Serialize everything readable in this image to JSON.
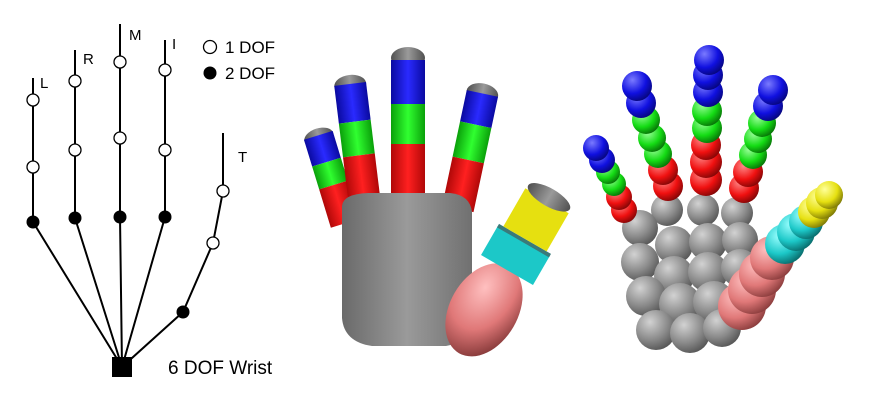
{
  "skeleton": {
    "finger_labels": {
      "little": "L",
      "ring": "R",
      "middle": "M",
      "index": "I",
      "thumb": "T"
    },
    "legend": {
      "one_dof": "1 DOF",
      "two_dof": "2 DOF"
    },
    "wrist_label": "6 DOF Wrist"
  },
  "colors": {
    "background": "#ffffff",
    "distal": "#1010e0",
    "middle": "#14e014",
    "proximal": "#f01010",
    "palm": "#8a8a8a",
    "thumb_distal": "#e6e010",
    "thumb_middle": "#1cc8c8",
    "thumb_proximal": "#e07878",
    "tip": "#7a7a7a"
  }
}
